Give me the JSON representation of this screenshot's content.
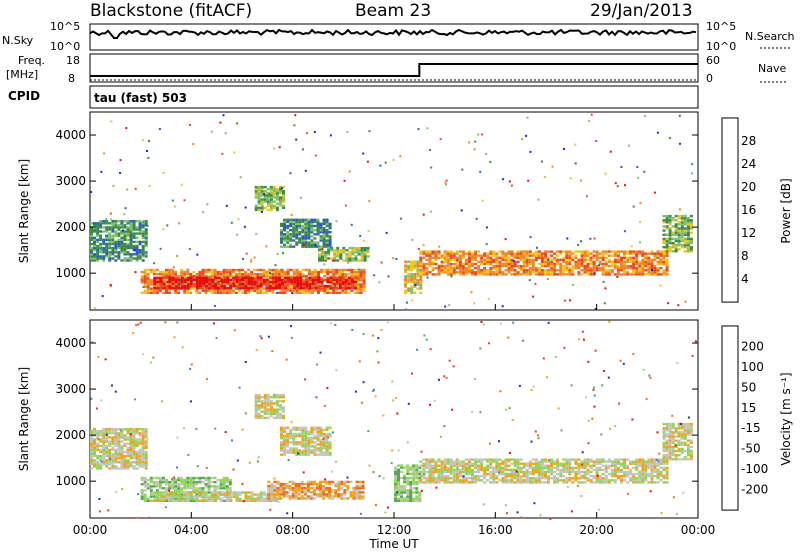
{
  "header": {
    "title_left": "Blackstone (fitACF)",
    "title_center": "Beam 23",
    "title_right": "29/Jan/2013"
  },
  "top_panels": {
    "nsky_label": "N.Sky",
    "nsky_ticks": [
      "10^5",
      "10^0"
    ],
    "nsearch_label": "N.Search",
    "nsearch_ticks": [
      "10^5",
      "10^0"
    ],
    "freq_label_1": "Freq.",
    "freq_label_2": "[MHz]",
    "freq_ticks": [
      "18",
      "8"
    ],
    "nave_label": "Nave",
    "nave_ticks": [
      "60",
      "0"
    ],
    "cpid_label": "CPID",
    "cpid_text": "tau (fast) 503"
  },
  "chart_data": [
    {
      "type": "heatmap",
      "name": "power",
      "ylabel": "Slant Range [km]",
      "ylim": [
        200,
        4500
      ],
      "yticks": [
        "1000",
        "2000",
        "3000",
        "4000"
      ],
      "xlim": [
        0,
        24
      ],
      "xticks": [
        "00:00",
        "04:00",
        "08:00",
        "12:00",
        "16:00",
        "20:00",
        "00:00"
      ],
      "colorbar": {
        "label": "Power [dB]",
        "ticks": [
          "4",
          "8",
          "12",
          "16",
          "20",
          "24",
          "28"
        ],
        "colors": [
          "#1c25e6",
          "#2f60b8",
          "#3d8a4a",
          "#7fc06b",
          "#f2c31c",
          "#f0852a",
          "#e94b25",
          "#e60d0d"
        ]
      },
      "regions": [
        {
          "t0": 0.0,
          "t1": 2.2,
          "r0": 1300,
          "r1": 2200,
          "level": 2
        },
        {
          "t0": 2.0,
          "t1": 10.8,
          "r0": 600,
          "r1": 1100,
          "level": 5
        },
        {
          "t0": 2.5,
          "t1": 10.5,
          "r0": 700,
          "r1": 950,
          "level": 7
        },
        {
          "t0": 6.5,
          "t1": 7.7,
          "r0": 2400,
          "r1": 2900,
          "level": 3
        },
        {
          "t0": 7.5,
          "t1": 9.5,
          "r0": 1600,
          "r1": 2200,
          "level": 2
        },
        {
          "t0": 9.0,
          "t1": 11.0,
          "r0": 1300,
          "r1": 1600,
          "level": 3
        },
        {
          "t0": 12.4,
          "t1": 13.0,
          "r0": 600,
          "r1": 1300,
          "level": 4
        },
        {
          "t0": 13.0,
          "t1": 22.8,
          "r0": 1000,
          "r1": 1500,
          "level": 5
        },
        {
          "t0": 22.6,
          "t1": 23.7,
          "r0": 1500,
          "r1": 2300,
          "level": 3
        }
      ]
    },
    {
      "type": "heatmap",
      "name": "velocity",
      "ylabel": "Slant Range [km]",
      "ylim": [
        200,
        4500
      ],
      "yticks": [
        "1000",
        "2000",
        "3000",
        "4000"
      ],
      "xlim": [
        0,
        24
      ],
      "xticks": [
        "00:00",
        "04:00",
        "08:00",
        "12:00",
        "16:00",
        "20:00",
        "00:00"
      ],
      "xlabel": "Time UT",
      "colorbar": {
        "label": "Velocity [m s⁻¹]",
        "ticks": [
          "200",
          "100",
          "50",
          "15",
          "-15",
          "-50",
          "-100",
          "-200"
        ],
        "colors": [
          "#1c2fb3",
          "#3a86c9",
          "#56a84a",
          "#8fd65c",
          "#c4c4bc",
          "#f2a418",
          "#f06b1e",
          "#e63c20",
          "#e60d0d"
        ]
      },
      "regions": [
        {
          "t0": 0.0,
          "t1": 2.2,
          "r0": 1300,
          "r1": 2200,
          "level": 4
        },
        {
          "t0": 2.0,
          "t1": 5.5,
          "r0": 600,
          "r1": 1100,
          "level": 3
        },
        {
          "t0": 2.5,
          "t1": 7.5,
          "r0": 600,
          "r1": 800,
          "level": 4
        },
        {
          "t0": 7.0,
          "t1": 10.8,
          "r0": 650,
          "r1": 1050,
          "level": 5
        },
        {
          "t0": 6.5,
          "t1": 7.7,
          "r0": 2400,
          "r1": 2900,
          "level": 4
        },
        {
          "t0": 7.5,
          "t1": 9.5,
          "r0": 1600,
          "r1": 2200,
          "level": 4
        },
        {
          "t0": 12.0,
          "t1": 13.0,
          "r0": 600,
          "r1": 1400,
          "level": 3
        },
        {
          "t0": 13.0,
          "t1": 22.8,
          "r0": 1000,
          "r1": 1500,
          "level": 4
        },
        {
          "t0": 22.6,
          "t1": 23.7,
          "r0": 1500,
          "r1": 2300,
          "level": 4
        }
      ]
    }
  ]
}
